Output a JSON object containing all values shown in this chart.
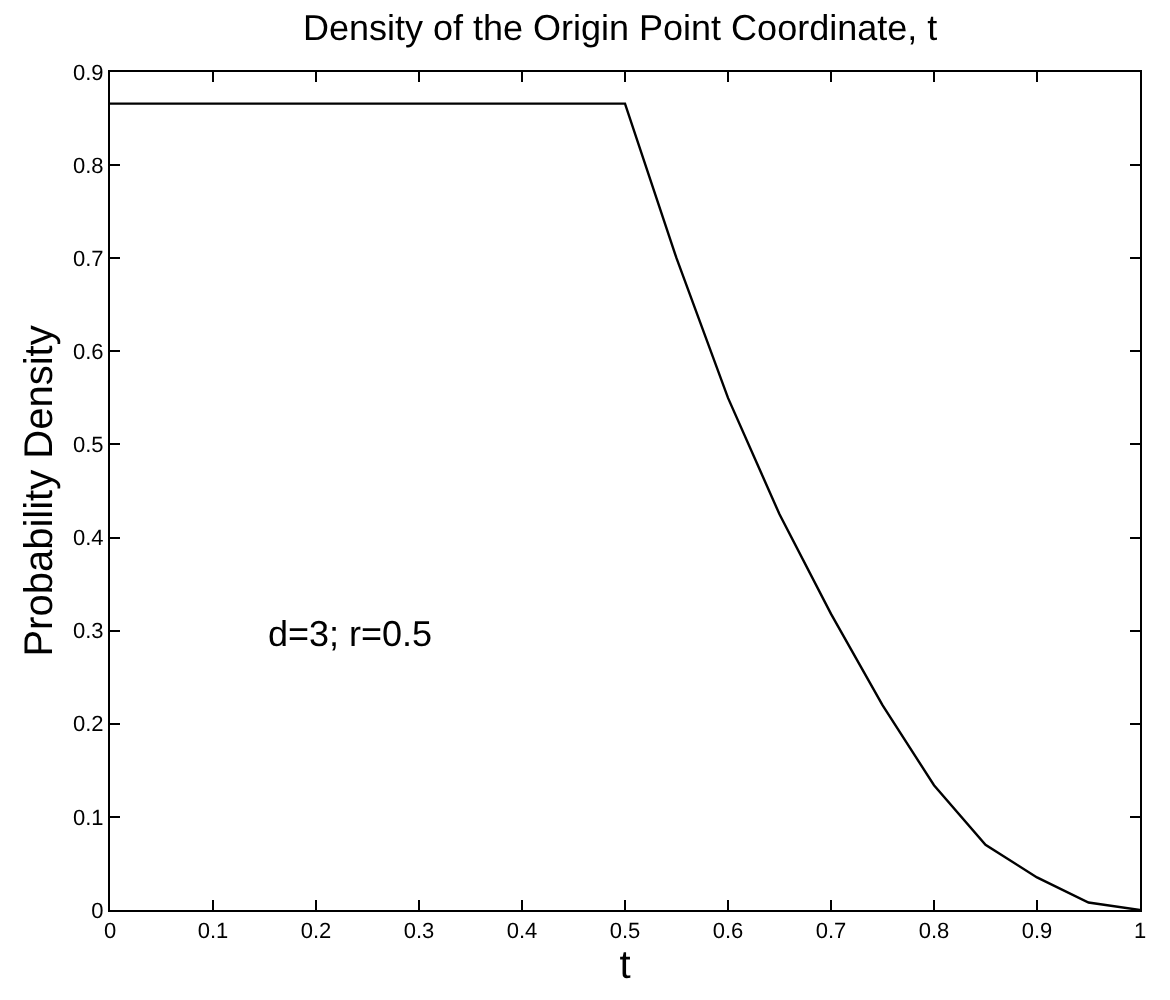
{
  "chart_data": {
    "type": "line",
    "title": "Density of the Origin Point Coordinate, t",
    "xlabel": "t",
    "ylabel": "Probability Density",
    "annotations": [
      "d=3; r=0.5"
    ],
    "x": [
      0,
      0.5,
      0.55,
      0.6,
      0.65,
      0.7,
      0.75,
      0.8,
      0.85,
      0.9,
      0.95,
      1.0
    ],
    "series": [
      {
        "color": "#000000",
        "values": [
          0.866,
          0.866,
          0.7,
          0.55,
          0.425,
          0.318,
          0.22,
          0.134,
          0.07,
          0.035,
          0.008,
          0
        ]
      }
    ],
    "xlim": [
      0,
      1
    ],
    "ylim": [
      0,
      0.9
    ],
    "xticks": [
      0,
      0.1,
      0.2,
      0.3,
      0.4,
      0.5,
      0.6,
      0.7,
      0.8,
      0.9,
      1
    ],
    "yticks": [
      0,
      0.1,
      0.2,
      0.3,
      0.4,
      0.5,
      0.6,
      0.7,
      0.8,
      0.9
    ],
    "marker": "none",
    "line_style": "solid"
  }
}
